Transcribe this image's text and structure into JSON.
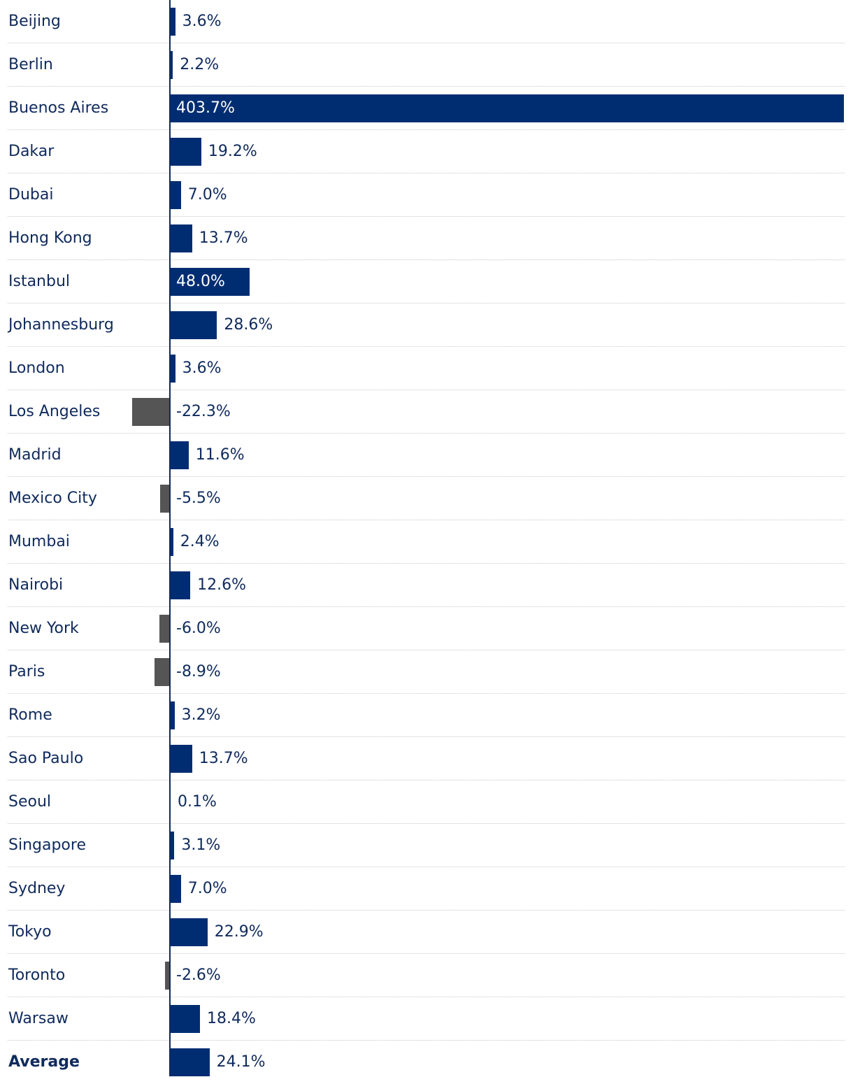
{
  "chart_data": {
    "type": "bar",
    "orientation": "horizontal",
    "categories": [
      "Beijing",
      "Berlin",
      "Buenos Aires",
      "Dakar",
      "Dubai",
      "Hong Kong",
      "Istanbul",
      "Johannesburg",
      "London",
      "Los Angeles",
      "Madrid",
      "Mexico City",
      "Mumbai",
      "Nairobi",
      "New York",
      "Paris",
      "Rome",
      "Sao Paulo",
      "Seoul",
      "Singapore",
      "Sydney",
      "Tokyo",
      "Toronto",
      "Warsaw",
      "Average"
    ],
    "values": [
      3.6,
      2.2,
      403.7,
      19.2,
      7.0,
      13.7,
      48.0,
      28.6,
      3.6,
      -22.3,
      11.6,
      -5.5,
      2.4,
      12.6,
      -6.0,
      -8.9,
      3.2,
      13.7,
      0.1,
      3.1,
      7.0,
      22.9,
      -2.6,
      18.4,
      24.1
    ],
    "value_labels": [
      "3.6%",
      "2.2%",
      "403.7%",
      "19.2%",
      "7.0%",
      "13.7%",
      "48.0%",
      "28.6%",
      "3.6%",
      "-22.3%",
      "11.6%",
      "-5.5%",
      "2.4%",
      "12.6%",
      "-6.0%",
      "-8.9%",
      "3.2%",
      "13.7%",
      "0.1%",
      "3.1%",
      "7.0%",
      "22.9%",
      "-2.6%",
      "18.4%",
      "24.1%"
    ],
    "emphasized_category": "Average",
    "unit": "%",
    "title": "",
    "xlabel": "",
    "ylabel": "",
    "grid": false,
    "colors": {
      "positive": "#002d72",
      "negative": "#555555",
      "label_text": "#0f2a5c",
      "inside_label_text": "#ffffff",
      "row_separator": "#c8c8c8"
    }
  }
}
